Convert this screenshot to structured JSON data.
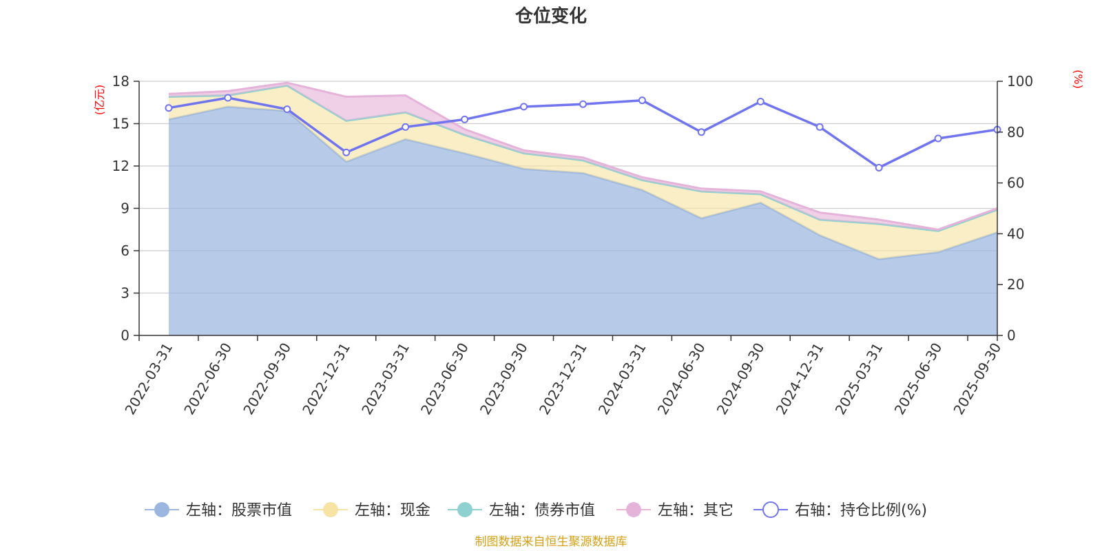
{
  "chart_data": {
    "type": "area",
    "title": "仓位变化",
    "categories": [
      "2022-03-31",
      "2022-06-30",
      "2022-09-30",
      "2022-12-31",
      "2023-03-31",
      "2023-06-30",
      "2023-09-30",
      "2023-12-31",
      "2024-03-31",
      "2024-06-30",
      "2024-09-30",
      "2024-12-31",
      "2025-03-31",
      "2025-06-30",
      "2025-09-30"
    ],
    "left_axis": {
      "label": "(亿元)",
      "ylim": [
        0,
        18
      ],
      "ticks": [
        "0",
        "3",
        "6",
        "9",
        "12",
        "15",
        "18"
      ]
    },
    "right_axis": {
      "label": "(%)",
      "ylim": [
        0,
        100
      ],
      "ticks": [
        "0",
        "20",
        "40",
        "60",
        "80",
        "100"
      ]
    },
    "stacked": true,
    "series": [
      {
        "name": "左轴：股票市值",
        "axis": "left",
        "color": "#9bb7e0",
        "values": [
          15.3,
          16.2,
          15.9,
          12.3,
          13.9,
          12.9,
          11.8,
          11.5,
          10.3,
          8.3,
          9.4,
          7.1,
          5.4,
          5.9,
          7.3
        ]
      },
      {
        "name": "左轴：现金",
        "axis": "left",
        "color": "#f7e3a3",
        "values": [
          1.6,
          0.8,
          1.8,
          2.9,
          1.9,
          1.3,
          1.1,
          0.9,
          0.7,
          1.9,
          0.6,
          1.1,
          2.5,
          1.5,
          1.6
        ]
      },
      {
        "name": "左轴：债券市值",
        "axis": "left",
        "color": "#8fd1d0",
        "values": [
          0,
          0,
          0,
          0,
          0,
          0,
          0,
          0,
          0,
          0,
          0,
          0,
          0,
          0,
          0
        ]
      },
      {
        "name": "左轴：其它",
        "axis": "left",
        "color": "#e5b3d9",
        "values": [
          0.2,
          0.3,
          0.2,
          1.7,
          1.2,
          0.4,
          0.2,
          0.2,
          0.2,
          0.2,
          0.2,
          0.5,
          0.3,
          0.1,
          0.1
        ]
      },
      {
        "name": "右轴：持仓比例(%)",
        "axis": "right",
        "color": "#7074ee",
        "values": [
          89.5,
          93.5,
          89.0,
          72.0,
          82.0,
          85.0,
          90.0,
          91.0,
          92.5,
          80.0,
          92.0,
          82.0,
          66.0,
          77.5,
          81.0
        ]
      }
    ],
    "source": "制图数据来自恒生聚源数据库",
    "colors": {
      "axis_label": "#ff0000",
      "source": "#d4a017",
      "grid": "#cccccc",
      "axis": "#333333"
    }
  }
}
